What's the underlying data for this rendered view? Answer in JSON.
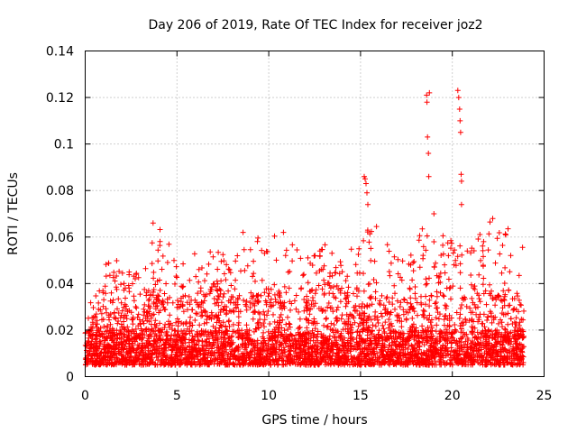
{
  "chart_data": {
    "type": "scatter",
    "title": "Day 206 of 2019, Rate Of TEC Index for receiver joz2",
    "xlabel": "GPS time / hours",
    "ylabel": "ROTI / TECUs",
    "xlim": [
      0,
      25
    ],
    "ylim": [
      0,
      0.14
    ],
    "xticks": [
      0,
      5,
      10,
      15,
      20,
      25
    ],
    "xtick_labels": [
      "0",
      "5",
      "10",
      "15",
      "20",
      "25"
    ],
    "yticks": [
      0,
      0.02,
      0.04,
      0.06,
      0.08,
      0.1,
      0.12,
      0.14
    ],
    "ytick_labels": [
      "0",
      "0.02",
      "0.04",
      "0.06",
      "0.08",
      "0.1",
      "0.12",
      "0.14"
    ],
    "grid": true,
    "marker": "+",
    "color": "#ff0000",
    "series": [
      {
        "name": "ROTI",
        "note": "dense scatter of ~10000 points; baseline 0.005-0.035, frequent spikes to ~0.05-0.066",
        "envelope": {
          "x": [
            0,
            1,
            2,
            3,
            4,
            5,
            6,
            7,
            8,
            9,
            10,
            11,
            12,
            13,
            14,
            15,
            16,
            17,
            18,
            19,
            20,
            21,
            22,
            23,
            24
          ],
          "base_max": [
            0.022,
            0.036,
            0.032,
            0.03,
            0.04,
            0.034,
            0.033,
            0.04,
            0.036,
            0.036,
            0.038,
            0.04,
            0.036,
            0.042,
            0.038,
            0.035,
            0.036,
            0.036,
            0.04,
            0.045,
            0.045,
            0.04,
            0.04,
            0.038,
            0.032
          ],
          "peak_max": [
            0.024,
            0.055,
            0.048,
            0.044,
            0.066,
            0.05,
            0.054,
            0.055,
            0.05,
            0.058,
            0.062,
            0.06,
            0.05,
            0.058,
            0.05,
            0.062,
            0.066,
            0.05,
            0.06,
            0.07,
            0.06,
            0.056,
            0.068,
            0.064,
            0.06
          ]
        },
        "outliers": {
          "x": [
            15.2,
            15.25,
            15.3,
            15.35,
            15.4,
            18.6,
            18.62,
            18.65,
            18.7,
            18.72,
            18.75,
            19.0,
            20.3,
            20.35,
            20.4,
            20.42,
            20.45,
            20.48,
            20.5,
            20.5,
            8.6,
            3.7,
            22.2,
            10.8
          ],
          "y": [
            0.086,
            0.085,
            0.083,
            0.079,
            0.074,
            0.121,
            0.118,
            0.103,
            0.096,
            0.086,
            0.122,
            0.07,
            0.123,
            0.12,
            0.115,
            0.11,
            0.105,
            0.087,
            0.084,
            0.074,
            0.062,
            0.066,
            0.068,
            0.062
          ]
        }
      }
    ]
  }
}
